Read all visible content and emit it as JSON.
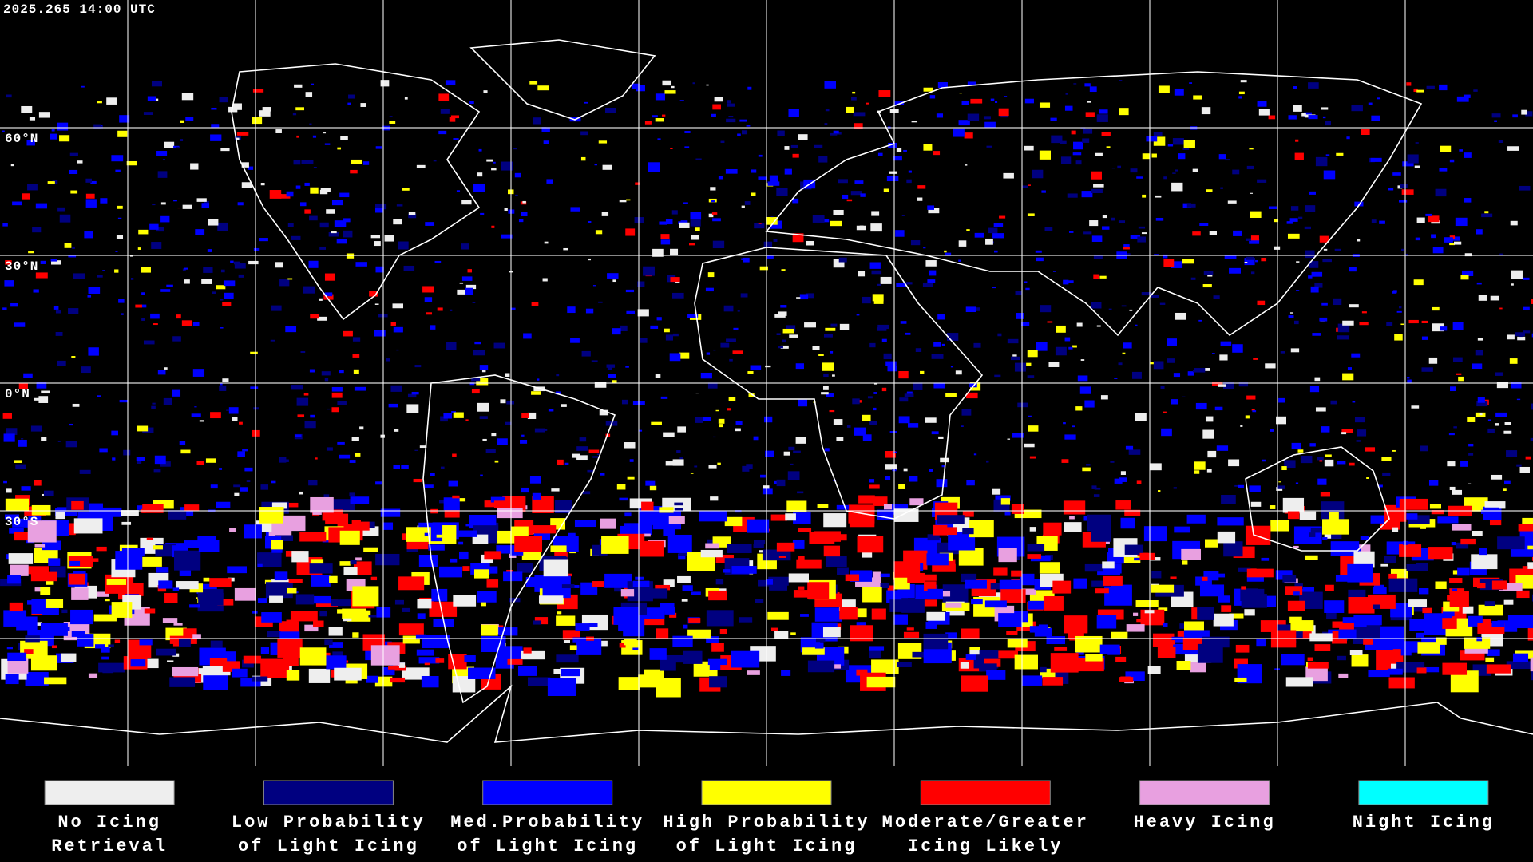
{
  "header": {
    "timestamp": "2025.265 14:00 UTC"
  },
  "map": {
    "latitude_labels": [
      "60°N",
      "30°N",
      "0°N",
      "30°S"
    ]
  },
  "legend": [
    {
      "label_lines": [
        "No Icing",
        "Retrieval"
      ],
      "color": "#eeeeee"
    },
    {
      "label_lines": [
        "Low Probability",
        "of Light Icing"
      ],
      "color": "#000080"
    },
    {
      "label_lines": [
        "Med.Probability",
        "of Light Icing"
      ],
      "color": "#0000ff"
    },
    {
      "label_lines": [
        "High Probability",
        "of Light Icing"
      ],
      "color": "#ffff00"
    },
    {
      "label_lines": [
        "Moderate/Greater",
        "Icing Likely"
      ],
      "color": "#ff0000"
    },
    {
      "label_lines": [
        "Heavy Icing"
      ],
      "color": "#e8a0e0"
    },
    {
      "label_lines": [
        "Night Icing"
      ],
      "color": "#00ffff"
    }
  ]
}
